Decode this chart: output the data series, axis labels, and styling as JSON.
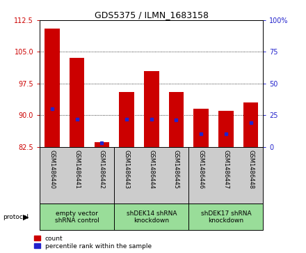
{
  "title": "GDS5375 / ILMN_1683158",
  "samples": [
    "GSM1486440",
    "GSM1486441",
    "GSM1486442",
    "GSM1486443",
    "GSM1486444",
    "GSM1486445",
    "GSM1486446",
    "GSM1486447",
    "GSM1486448"
  ],
  "count_values": [
    110.5,
    103.5,
    83.5,
    95.5,
    100.5,
    95.5,
    91.5,
    91.0,
    93.0
  ],
  "percentile_values": [
    30,
    22,
    3,
    22,
    22,
    21,
    10,
    10,
    19
  ],
  "ylim_left": [
    82.5,
    112.5
  ],
  "ylim_right": [
    0,
    100
  ],
  "yticks_left": [
    82.5,
    90.0,
    97.5,
    105.0,
    112.5
  ],
  "yticks_right": [
    0,
    25,
    50,
    75,
    100
  ],
  "bar_color": "#cc0000",
  "marker_color": "#2222cc",
  "bar_base": 82.5,
  "groups": [
    {
      "label": "empty vector\nshRNA control",
      "start": 0,
      "end": 2,
      "color": "#99dd99"
    },
    {
      "label": "shDEK14 shRNA\nknockdown",
      "start": 3,
      "end": 5,
      "color": "#99dd99"
    },
    {
      "label": "shDEK17 shRNA\nknockdown",
      "start": 6,
      "end": 8,
      "color": "#99dd99"
    }
  ],
  "tick_color_left": "#cc0000",
  "tick_color_right": "#2222cc",
  "background_color": "#ffffff",
  "sample_bg_color": "#cccccc",
  "title_fontsize": 9,
  "tick_fontsize": 7,
  "sample_fontsize": 6,
  "group_fontsize": 6.5
}
